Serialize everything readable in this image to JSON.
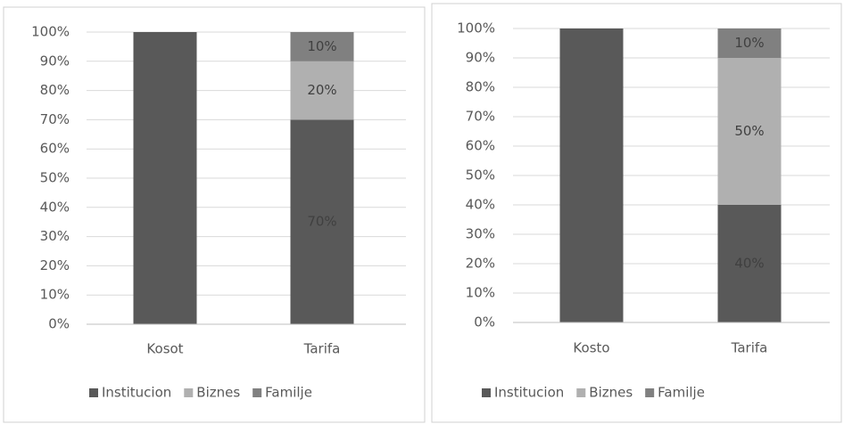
{
  "chart_data": [
    {
      "type": "bar",
      "stacked": true,
      "categories": [
        "Kosot",
        "Tarifa"
      ],
      "series": [
        {
          "name": "Institucion",
          "color": "#595959",
          "values": [
            100,
            70
          ],
          "value_labels": [
            null,
            "70%"
          ]
        },
        {
          "name": "Biznes",
          "color": "#b0b0b0",
          "values": [
            0,
            20
          ],
          "value_labels": [
            null,
            "20%"
          ]
        },
        {
          "name": "Familje",
          "color": "#808080",
          "values": [
            0,
            10
          ],
          "value_labels": [
            null,
            "10%"
          ]
        }
      ],
      "ylim": [
        0,
        100
      ],
      "yticks": [
        {
          "value": 0,
          "label": "0%"
        },
        {
          "value": 10,
          "label": "10%"
        },
        {
          "value": 20,
          "label": "20%"
        },
        {
          "value": 30,
          "label": "30%"
        },
        {
          "value": 40,
          "label": "40%"
        },
        {
          "value": 50,
          "label": "50%"
        },
        {
          "value": 60,
          "label": "60%"
        },
        {
          "value": 70,
          "label": "70%"
        },
        {
          "value": 80,
          "label": "80%"
        },
        {
          "value": 90,
          "label": "90%"
        },
        {
          "value": 100,
          "label": "100%"
        }
      ],
      "grid": true,
      "legend": "bottom"
    },
    {
      "type": "bar",
      "stacked": true,
      "categories": [
        "Kosto",
        "Tarifa"
      ],
      "series": [
        {
          "name": "Institucion",
          "color": "#595959",
          "values": [
            100,
            40
          ],
          "value_labels": [
            null,
            "40%"
          ]
        },
        {
          "name": "Biznes",
          "color": "#b0b0b0",
          "values": [
            0,
            50
          ],
          "value_labels": [
            null,
            "50%"
          ]
        },
        {
          "name": "Familje",
          "color": "#808080",
          "values": [
            0,
            10
          ],
          "value_labels": [
            null,
            "10%"
          ]
        }
      ],
      "ylim": [
        0,
        100
      ],
      "yticks": [
        {
          "value": 0,
          "label": "0%"
        },
        {
          "value": 10,
          "label": "10%"
        },
        {
          "value": 20,
          "label": "20%"
        },
        {
          "value": 30,
          "label": "30%"
        },
        {
          "value": 40,
          "label": "40%"
        },
        {
          "value": 50,
          "label": "50%"
        },
        {
          "value": 60,
          "label": "60%"
        },
        {
          "value": 70,
          "label": "70%"
        },
        {
          "value": 80,
          "label": "80%"
        },
        {
          "value": 90,
          "label": "90%"
        },
        {
          "value": 100,
          "label": "100%"
        }
      ],
      "grid": true,
      "legend": "bottom"
    }
  ]
}
